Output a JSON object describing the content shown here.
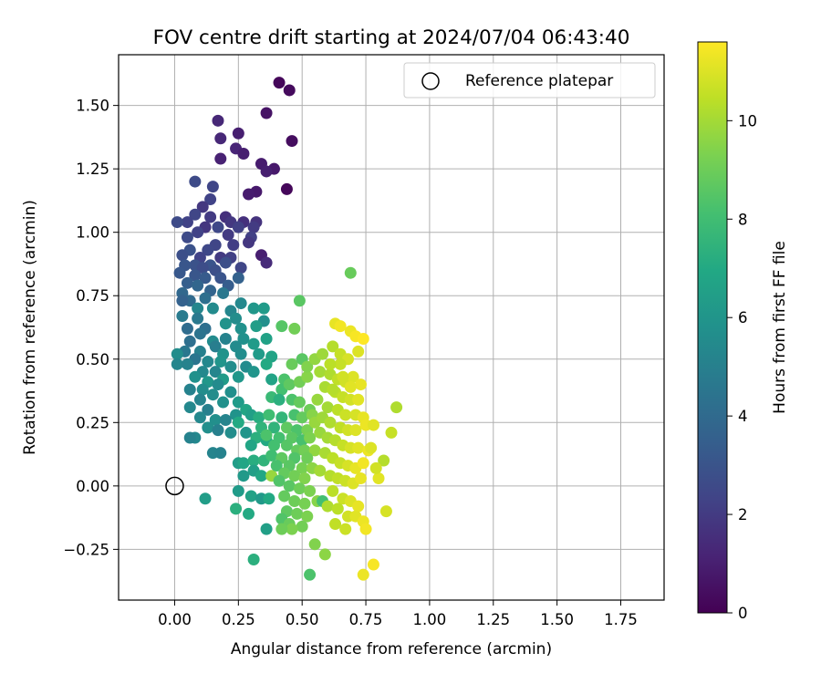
{
  "chart_data": {
    "type": "scatter",
    "title": "FOV centre drift starting at 2024/07/04 06:43:40",
    "xlabel": "Angular distance from reference (arcmin)",
    "ylabel": "Rotation from reference (arcmin)",
    "xlim": [
      -0.22,
      1.92
    ],
    "ylim": [
      -0.45,
      1.7
    ],
    "xticks": [
      0.0,
      0.25,
      0.5,
      0.75,
      1.0,
      1.25,
      1.5,
      1.75
    ],
    "xtick_labels": [
      "0.00",
      "0.25",
      "0.50",
      "0.75",
      "1.00",
      "1.25",
      "1.50",
      "1.75"
    ],
    "yticks": [
      -0.25,
      0.0,
      0.25,
      0.5,
      0.75,
      1.0,
      1.25,
      1.5
    ],
    "ytick_labels": [
      "−0.25",
      "0.00",
      "0.25",
      "0.50",
      "0.75",
      "1.00",
      "1.25",
      "1.50"
    ],
    "grid": true,
    "legend": {
      "position": "top-right",
      "entries": [
        "Reference platepar"
      ]
    },
    "reference_point": {
      "x": 0.0,
      "y": 0.0,
      "label": "Reference platepar"
    },
    "colorbar": {
      "label": "Hours from first FF file",
      "colormap": "viridis",
      "range": [
        0,
        11.6
      ],
      "ticks": [
        0,
        2,
        4,
        6,
        8,
        10
      ],
      "tick_labels": [
        "0",
        "2",
        "4",
        "6",
        "8",
        "10"
      ]
    },
    "points": [
      [
        0.41,
        1.59,
        0.2
      ],
      [
        0.45,
        1.56,
        0.3
      ],
      [
        0.46,
        1.36,
        0.4
      ],
      [
        0.44,
        1.17,
        0.2
      ],
      [
        0.36,
        1.47,
        0.6
      ],
      [
        0.17,
        1.44,
        1.3
      ],
      [
        0.25,
        1.39,
        1.0
      ],
      [
        0.18,
        1.37,
        1.3
      ],
      [
        0.24,
        1.33,
        1.2
      ],
      [
        0.27,
        1.31,
        1.0
      ],
      [
        0.18,
        1.29,
        1.1
      ],
      [
        0.34,
        1.27,
        0.9
      ],
      [
        0.39,
        1.25,
        0.8
      ],
      [
        0.36,
        1.24,
        1.0
      ],
      [
        0.32,
        1.16,
        0.8
      ],
      [
        0.29,
        1.15,
        0.9
      ],
      [
        0.15,
        1.18,
        2.4
      ],
      [
        0.08,
        1.2,
        2.6
      ],
      [
        0.14,
        1.13,
        2.3
      ],
      [
        0.11,
        1.1,
        1.9
      ],
      [
        0.14,
        1.06,
        2.0
      ],
      [
        0.08,
        1.07,
        2.4
      ],
      [
        0.05,
        1.04,
        2.3
      ],
      [
        0.01,
        1.04,
        2.6
      ],
      [
        0.2,
        1.06,
        1.6
      ],
      [
        0.22,
        1.04,
        1.9
      ],
      [
        0.27,
        1.04,
        1.6
      ],
      [
        0.32,
        1.04,
        1.7
      ],
      [
        0.31,
        1.02,
        2.0
      ],
      [
        0.25,
        1.02,
        2.2
      ],
      [
        0.17,
        1.02,
        2.5
      ],
      [
        0.12,
        1.02,
        1.8
      ],
      [
        0.09,
        1.0,
        2.3
      ],
      [
        0.21,
        0.99,
        2.0
      ],
      [
        0.3,
        0.98,
        2.2
      ],
      [
        0.29,
        0.96,
        1.9
      ],
      [
        0.23,
        0.95,
        2.1
      ],
      [
        0.16,
        0.95,
        2.4
      ],
      [
        0.05,
        0.98,
        2.6
      ],
      [
        0.13,
        0.93,
        2.5
      ],
      [
        0.06,
        0.93,
        2.9
      ],
      [
        0.03,
        0.91,
        2.8
      ],
      [
        0.1,
        0.9,
        2.3
      ],
      [
        0.18,
        0.9,
        2.0
      ],
      [
        0.22,
        0.9,
        2.2
      ],
      [
        0.34,
        0.91,
        1.0
      ],
      [
        0.2,
        0.88,
        2.8
      ],
      [
        0.14,
        0.87,
        3.0
      ],
      [
        0.08,
        0.87,
        2.9
      ],
      [
        0.04,
        0.87,
        3.1
      ],
      [
        0.11,
        0.86,
        2.7
      ],
      [
        0.16,
        0.85,
        2.8
      ],
      [
        0.36,
        0.88,
        1.4
      ],
      [
        0.26,
        0.86,
        2.4
      ],
      [
        0.02,
        0.84,
        3.2
      ],
      [
        0.08,
        0.83,
        3.1
      ],
      [
        0.12,
        0.82,
        3.3
      ],
      [
        0.18,
        0.82,
        3.0
      ],
      [
        0.25,
        0.82,
        3.6
      ],
      [
        0.05,
        0.8,
        3.5
      ],
      [
        0.09,
        0.79,
        3.8
      ],
      [
        0.21,
        0.79,
        3.4
      ],
      [
        0.14,
        0.77,
        3.7
      ],
      [
        0.03,
        0.76,
        3.9
      ],
      [
        0.19,
        0.76,
        4.6
      ],
      [
        0.12,
        0.74,
        4.2
      ],
      [
        0.06,
        0.73,
        4.0
      ],
      [
        0.03,
        0.73,
        3.6
      ],
      [
        0.26,
        0.72,
        5.4
      ],
      [
        0.09,
        0.7,
        5.3
      ],
      [
        0.15,
        0.7,
        5.5
      ],
      [
        0.22,
        0.69,
        5.3
      ],
      [
        0.31,
        0.7,
        6.1
      ],
      [
        0.35,
        0.7,
        6.3
      ],
      [
        0.03,
        0.67,
        4.8
      ],
      [
        0.09,
        0.66,
        4.7
      ],
      [
        0.24,
        0.66,
        5.6
      ],
      [
        0.2,
        0.64,
        5.9
      ],
      [
        0.26,
        0.62,
        5.8
      ],
      [
        0.35,
        0.65,
        5.7
      ],
      [
        0.32,
        0.63,
        6.4
      ],
      [
        0.12,
        0.62,
        4.2
      ],
      [
        0.05,
        0.62,
        4.1
      ],
      [
        0.1,
        0.6,
        4.4
      ],
      [
        0.06,
        0.57,
        4.2
      ],
      [
        0.15,
        0.57,
        5.5
      ],
      [
        0.2,
        0.58,
        5.1
      ],
      [
        0.27,
        0.58,
        5.8
      ],
      [
        0.36,
        0.58,
        6.6
      ],
      [
        0.31,
        0.56,
        6.3
      ],
      [
        0.24,
        0.55,
        5.5
      ],
      [
        0.16,
        0.55,
        4.9
      ],
      [
        0.1,
        0.53,
        5.0
      ],
      [
        0.04,
        0.53,
        4.6
      ],
      [
        0.01,
        0.52,
        5.6
      ],
      [
        0.26,
        0.52,
        5.6
      ],
      [
        0.19,
        0.52,
        5.9
      ],
      [
        0.33,
        0.52,
        6.3
      ],
      [
        0.38,
        0.51,
        6.7
      ],
      [
        0.08,
        0.5,
        4.5
      ],
      [
        0.13,
        0.49,
        5.4
      ],
      [
        0.18,
        0.49,
        6.0
      ],
      [
        0.01,
        0.48,
        5.3
      ],
      [
        0.05,
        0.48,
        5.1
      ],
      [
        0.22,
        0.47,
        5.6
      ],
      [
        0.28,
        0.47,
        5.5
      ],
      [
        0.36,
        0.48,
        7.0
      ],
      [
        0.11,
        0.45,
        5.4
      ],
      [
        0.16,
        0.45,
        5.3
      ],
      [
        0.31,
        0.45,
        6.0
      ],
      [
        0.08,
        0.43,
        5.8
      ],
      [
        0.13,
        0.41,
        6.1
      ],
      [
        0.19,
        0.42,
        6.3
      ],
      [
        0.25,
        0.43,
        6.1
      ],
      [
        0.17,
        0.4,
        5.5
      ],
      [
        0.38,
        0.42,
        6.7
      ],
      [
        0.06,
        0.38,
        5.1
      ],
      [
        0.11,
        0.38,
        5.6
      ],
      [
        0.15,
        0.36,
        5.6
      ],
      [
        0.22,
        0.37,
        5.7
      ],
      [
        0.1,
        0.34,
        5.2
      ],
      [
        0.19,
        0.33,
        5.8
      ],
      [
        0.06,
        0.31,
        5.4
      ],
      [
        0.13,
        0.3,
        5.0
      ],
      [
        0.25,
        0.33,
        6.3
      ],
      [
        0.28,
        0.3,
        6.8
      ],
      [
        0.24,
        0.28,
        5.9
      ],
      [
        0.1,
        0.27,
        5.4
      ],
      [
        0.16,
        0.26,
        5.7
      ],
      [
        0.2,
        0.26,
        5.2
      ],
      [
        0.25,
        0.25,
        7.0
      ],
      [
        0.3,
        0.28,
        6.5
      ],
      [
        0.33,
        0.27,
        7.2
      ],
      [
        0.13,
        0.23,
        5.7
      ],
      [
        0.17,
        0.22,
        5.0
      ],
      [
        0.22,
        0.21,
        5.6
      ],
      [
        0.28,
        0.21,
        6.0
      ],
      [
        0.34,
        0.23,
        7.5
      ],
      [
        0.08,
        0.19,
        5.4
      ],
      [
        0.06,
        0.19,
        5.1
      ],
      [
        0.32,
        0.19,
        7.3
      ],
      [
        0.36,
        0.18,
        7.0
      ],
      [
        0.3,
        0.16,
        6.8
      ],
      [
        0.15,
        0.13,
        5.2
      ],
      [
        0.18,
        0.13,
        5.1
      ],
      [
        0.25,
        0.09,
        6.4
      ],
      [
        0.27,
        0.09,
        6.8
      ],
      [
        0.31,
        0.1,
        7.2
      ],
      [
        0.35,
        0.1,
        7.5
      ],
      [
        0.31,
        0.06,
        6.5
      ],
      [
        0.27,
        0.04,
        6.2
      ],
      [
        0.34,
        0.04,
        6.9
      ],
      [
        0.25,
        -0.02,
        6.3
      ],
      [
        0.3,
        -0.04,
        6.6
      ],
      [
        0.34,
        -0.05,
        6.2
      ],
      [
        0.37,
        -0.05,
        7.0
      ],
      [
        0.12,
        -0.05,
        6.4
      ],
      [
        0.24,
        -0.09,
        7.3
      ],
      [
        0.29,
        -0.11,
        7.0
      ],
      [
        0.36,
        -0.17,
        6.5
      ],
      [
        0.31,
        -0.29,
        7.3
      ],
      [
        0.38,
        0.04,
        9.8
      ],
      [
        0.42,
        0.63,
        8.5
      ],
      [
        0.49,
        0.73,
        8.6
      ],
      [
        0.46,
        0.48,
        8.9
      ],
      [
        0.5,
        0.5,
        8.6
      ],
      [
        0.43,
        0.42,
        8.3
      ],
      [
        0.38,
        0.35,
        7.8
      ],
      [
        0.42,
        0.38,
        8.1
      ],
      [
        0.45,
        0.4,
        8.7
      ],
      [
        0.49,
        0.41,
        9.1
      ],
      [
        0.52,
        0.43,
        9.5
      ],
      [
        0.41,
        0.34,
        7.3
      ],
      [
        0.46,
        0.34,
        8.3
      ],
      [
        0.49,
        0.33,
        8.8
      ],
      [
        0.53,
        0.3,
        9.0
      ],
      [
        0.37,
        0.28,
        8.0
      ],
      [
        0.42,
        0.27,
        7.6
      ],
      [
        0.47,
        0.28,
        8.2
      ],
      [
        0.5,
        0.27,
        8.8
      ],
      [
        0.54,
        0.28,
        9.5
      ],
      [
        0.39,
        0.23,
        7.5
      ],
      [
        0.44,
        0.23,
        8.7
      ],
      [
        0.48,
        0.22,
        8.3
      ],
      [
        0.52,
        0.22,
        9.2
      ],
      [
        0.55,
        0.25,
        9.8
      ],
      [
        0.36,
        0.2,
        8.3
      ],
      [
        0.41,
        0.19,
        8.1
      ],
      [
        0.46,
        0.19,
        8.6
      ],
      [
        0.5,
        0.18,
        8.2
      ],
      [
        0.53,
        0.19,
        9.3
      ],
      [
        0.39,
        0.16,
        8.1
      ],
      [
        0.44,
        0.16,
        8.5
      ],
      [
        0.48,
        0.14,
        8.8
      ],
      [
        0.51,
        0.14,
        9.1
      ],
      [
        0.55,
        0.14,
        9.7
      ],
      [
        0.38,
        0.12,
        8.0
      ],
      [
        0.42,
        0.11,
        8.7
      ],
      [
        0.47,
        0.11,
        8.4
      ],
      [
        0.52,
        0.11,
        9.0
      ],
      [
        0.4,
        0.08,
        8.2
      ],
      [
        0.45,
        0.08,
        8.6
      ],
      [
        0.5,
        0.07,
        9.2
      ],
      [
        0.54,
        0.07,
        9.6
      ],
      [
        0.43,
        0.05,
        8.8
      ],
      [
        0.47,
        0.04,
        9.1
      ],
      [
        0.51,
        0.03,
        9.4
      ],
      [
        0.41,
        0.02,
        8.4
      ],
      [
        0.45,
        0.0,
        8.6
      ],
      [
        0.49,
        -0.01,
        9.0
      ],
      [
        0.53,
        -0.02,
        9.3
      ],
      [
        0.43,
        -0.04,
        8.8
      ],
      [
        0.47,
        -0.06,
        9.0
      ],
      [
        0.51,
        -0.07,
        9.2
      ],
      [
        0.44,
        -0.1,
        8.7
      ],
      [
        0.48,
        -0.11,
        9.0
      ],
      [
        0.52,
        -0.12,
        9.3
      ],
      [
        0.42,
        -0.13,
        8.4
      ],
      [
        0.45,
        -0.15,
        8.9
      ],
      [
        0.5,
        -0.16,
        9.1
      ],
      [
        0.46,
        -0.17,
        9.3
      ],
      [
        0.42,
        -0.17,
        9.0
      ],
      [
        0.56,
        -0.06,
        9.5
      ],
      [
        0.55,
        -0.23,
        9.4
      ],
      [
        0.59,
        -0.27,
        9.6
      ],
      [
        0.53,
        -0.35,
        8.3
      ],
      [
        0.58,
        -0.06,
        8.1
      ],
      [
        0.69,
        0.84,
        8.9
      ],
      [
        0.47,
        0.62,
        9.1
      ],
      [
        0.52,
        0.47,
        9.4
      ],
      [
        0.55,
        0.5,
        9.7
      ],
      [
        0.58,
        0.52,
        9.9
      ],
      [
        0.62,
        0.55,
        10.3
      ],
      [
        0.65,
        0.52,
        10.6
      ],
      [
        0.68,
        0.5,
        10.9
      ],
      [
        0.57,
        0.45,
        10.0
      ],
      [
        0.61,
        0.44,
        10.2
      ],
      [
        0.64,
        0.42,
        10.5
      ],
      [
        0.67,
        0.41,
        10.8
      ],
      [
        0.7,
        0.43,
        11.0
      ],
      [
        0.73,
        0.4,
        11.2
      ],
      [
        0.59,
        0.39,
        10.1
      ],
      [
        0.63,
        0.37,
        10.4
      ],
      [
        0.66,
        0.35,
        10.6
      ],
      [
        0.69,
        0.34,
        10.8
      ],
      [
        0.72,
        0.34,
        11.1
      ],
      [
        0.56,
        0.34,
        9.8
      ],
      [
        0.6,
        0.31,
        10.0
      ],
      [
        0.64,
        0.3,
        10.4
      ],
      [
        0.67,
        0.28,
        10.7
      ],
      [
        0.71,
        0.28,
        10.9
      ],
      [
        0.74,
        0.27,
        11.2
      ],
      [
        0.58,
        0.27,
        9.9
      ],
      [
        0.61,
        0.25,
        10.2
      ],
      [
        0.65,
        0.23,
        10.5
      ],
      [
        0.68,
        0.22,
        10.8
      ],
      [
        0.71,
        0.22,
        11.0
      ],
      [
        0.75,
        0.24,
        11.3
      ],
      [
        0.78,
        0.24,
        11.1
      ],
      [
        0.57,
        0.21,
        9.8
      ],
      [
        0.6,
        0.19,
        10.0
      ],
      [
        0.63,
        0.18,
        10.3
      ],
      [
        0.66,
        0.16,
        10.6
      ],
      [
        0.69,
        0.15,
        10.9
      ],
      [
        0.72,
        0.15,
        11.1
      ],
      [
        0.76,
        0.14,
        11.3
      ],
      [
        0.59,
        0.13,
        10.1
      ],
      [
        0.62,
        0.11,
        10.4
      ],
      [
        0.65,
        0.09,
        10.6
      ],
      [
        0.68,
        0.08,
        10.9
      ],
      [
        0.71,
        0.07,
        11.2
      ],
      [
        0.74,
        0.09,
        11.4
      ],
      [
        0.57,
        0.06,
        10.0
      ],
      [
        0.61,
        0.04,
        10.3
      ],
      [
        0.64,
        0.03,
        10.5
      ],
      [
        0.67,
        0.02,
        10.7
      ],
      [
        0.7,
        0.01,
        11.0
      ],
      [
        0.73,
        0.03,
        11.2
      ],
      [
        0.62,
        -0.02,
        10.4
      ],
      [
        0.66,
        -0.05,
        10.7
      ],
      [
        0.69,
        -0.06,
        11.0
      ],
      [
        0.72,
        -0.08,
        11.2
      ],
      [
        0.6,
        -0.08,
        10.2
      ],
      [
        0.64,
        -0.09,
        10.4
      ],
      [
        0.68,
        -0.12,
        10.8
      ],
      [
        0.71,
        -0.12,
        11.1
      ],
      [
        0.74,
        -0.14,
        11.3
      ],
      [
        0.63,
        -0.15,
        10.5
      ],
      [
        0.67,
        -0.17,
        10.7
      ],
      [
        0.75,
        -0.17,
        11.4
      ],
      [
        0.74,
        -0.35,
        11.3
      ],
      [
        0.78,
        -0.31,
        11.5
      ],
      [
        0.83,
        -0.1,
        10.9
      ],
      [
        0.87,
        0.31,
        10.2
      ],
      [
        0.85,
        0.21,
        10.6
      ],
      [
        0.82,
        0.1,
        10.3
      ],
      [
        0.8,
        0.03,
        11.1
      ],
      [
        0.79,
        0.07,
        10.8
      ],
      [
        0.77,
        0.15,
        11.0
      ],
      [
        0.63,
        0.64,
        11.2
      ],
      [
        0.65,
        0.63,
        11.4
      ],
      [
        0.69,
        0.61,
        11.3
      ],
      [
        0.71,
        0.59,
        11.5
      ],
      [
        0.74,
        0.58,
        11.6
      ],
      [
        0.72,
        0.53,
        11.0
      ],
      [
        0.65,
        0.48,
        10.6
      ],
      [
        0.61,
        0.48,
        10.4
      ],
      [
        0.66,
        0.43,
        10.8
      ],
      [
        0.69,
        0.39,
        11.1
      ],
      [
        0.62,
        0.38,
        10.3
      ]
    ]
  }
}
